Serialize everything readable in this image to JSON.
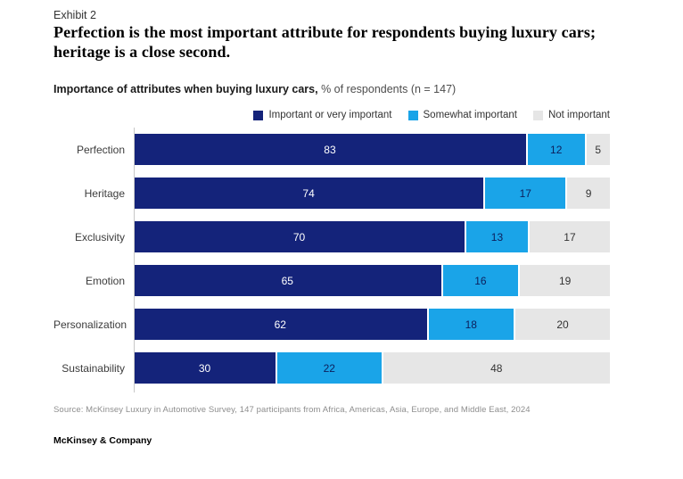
{
  "header": {
    "exhibit_label": "Exhibit 2",
    "title": "Perfection is the most important attribute for respondents buying luxury cars; heritage is a close second.",
    "subtitle_bold": "Importance of attributes when buying luxury cars,",
    "subtitle_rest": " % of respondents (n = 147)"
  },
  "colors": {
    "dark_blue": "#14237a",
    "light_blue": "#1aa4e8",
    "light_gray": "#e6e6e6",
    "value_text_on_dark": "#ffffff",
    "value_text_on_light_blue": "#0d1f5c",
    "value_text_on_gray": "#333333",
    "axis_line": "#c8c8c8"
  },
  "chart_data": {
    "type": "bar",
    "stacked": true,
    "orientation": "horizontal",
    "title": "Importance of attributes when buying luxury cars, % of respondents (n = 147)",
    "categories": [
      "Perfection",
      "Heritage",
      "Exclusivity",
      "Emotion",
      "Personalization",
      "Sustainability"
    ],
    "series": [
      {
        "name": "Important or very important",
        "color": "#14237a",
        "values": [
          83,
          74,
          70,
          65,
          62,
          30
        ]
      },
      {
        "name": "Somewhat important",
        "color": "#1aa4e8",
        "values": [
          12,
          17,
          13,
          16,
          18,
          22
        ]
      },
      {
        "name": "Not important",
        "color": "#e6e6e6",
        "values": [
          5,
          9,
          17,
          19,
          20,
          48
        ]
      }
    ],
    "xlim": [
      0,
      100
    ],
    "grid": false,
    "legend_position": "top-right",
    "value_labels": "inside-center"
  },
  "footer": {
    "source": "Source: McKinsey Luxury in Automotive Survey, 147 participants from Africa, Americas, Asia, Europe, and Middle East, 2024",
    "brand": "McKinsey & Company"
  }
}
